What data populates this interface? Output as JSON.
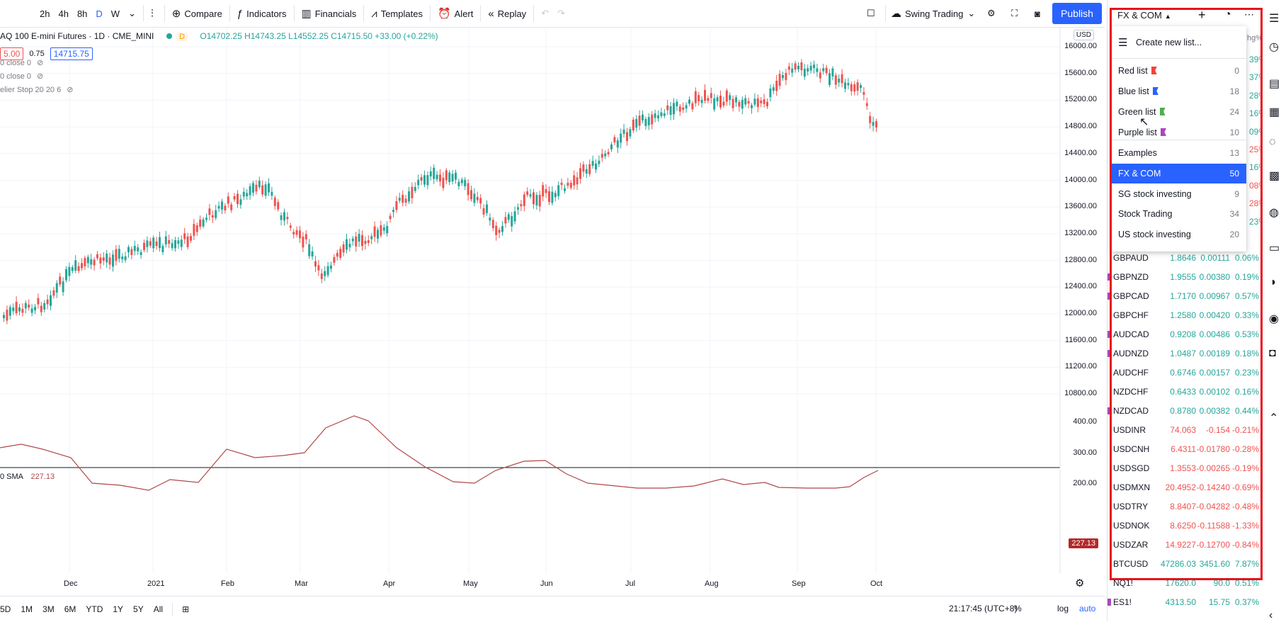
{
  "toolbar": {
    "intervals": [
      "2h",
      "4h",
      "8h",
      "D",
      "W"
    ],
    "active_interval": "D",
    "compare": "Compare",
    "indicators": "Indicators",
    "financials": "Financials",
    "templates": "Templates",
    "alert": "Alert",
    "replay": "Replay",
    "layout_name": "Swing Trading",
    "publish": "Publish"
  },
  "symbol": {
    "title": "AQ 100 E-mini Futures · 1D · CME_MINI",
    "badge": "D",
    "ohlc": "O14702.25 H14743.25 L14552.25 C14715.50 +33.00 (+0.22%)",
    "bid": "5.00",
    "spread": "0.75",
    "ask": "14715.75",
    "currency": "USD",
    "studies": [
      "0 close 0",
      "0 close 0",
      "elier Stop 20 20 6"
    ]
  },
  "sub_indicator": {
    "label": "0 SMA",
    "value": "227.13"
  },
  "price_scale": [
    "16000.00",
    "15600.00",
    "15200.00",
    "14800.00",
    "14400.00",
    "14000.00",
    "13600.00",
    "13200.00",
    "12800.00",
    "12400.00",
    "12000.00",
    "11600.00",
    "11200.00",
    "10800.00"
  ],
  "sub_scale": [
    "400.00",
    "300.00",
    "200.00"
  ],
  "sub_current": "227.13",
  "time_axis": [
    "Dec",
    "2021",
    "Feb",
    "Mar",
    "Apr",
    "May",
    "Jun",
    "Jul",
    "Aug",
    "Sep",
    "Oct"
  ],
  "bottom": {
    "ranges": [
      "5D",
      "1M",
      "3M",
      "6M",
      "YTD",
      "1Y",
      "5Y",
      "All"
    ],
    "time": "21:17:45 (UTC+8)",
    "pct": "%",
    "log": "log",
    "auto": "auto"
  },
  "watchlist": {
    "name": "FX & COM",
    "partial_header": "hg%",
    "partial_changes": [
      "39%",
      "37%",
      "28%",
      "16%",
      "09%",
      "25%",
      "16%",
      "08%",
      "28%",
      "23%"
    ],
    "rows": [
      {
        "sym": "GBPAUD",
        "last": "1.8646",
        "chg": "0.00111",
        "pct": "0.06%",
        "color": "#26a69a",
        "flag": ""
      },
      {
        "sym": "GBPNZD",
        "last": "1.9555",
        "chg": "0.00380",
        "pct": "0.19%",
        "color": "#26a69a",
        "flag": "#ab47bc"
      },
      {
        "sym": "GBPCAD",
        "last": "1.7170",
        "chg": "0.00967",
        "pct": "0.57%",
        "color": "#26a69a",
        "flag": "#ab47bc"
      },
      {
        "sym": "GBPCHF",
        "last": "1.2580",
        "chg": "0.00420",
        "pct": "0.33%",
        "color": "#26a69a",
        "flag": ""
      },
      {
        "sym": "AUDCAD",
        "last": "0.9208",
        "chg": "0.00486",
        "pct": "0.53%",
        "color": "#26a69a",
        "flag": "#ab47bc"
      },
      {
        "sym": "AUDNZD",
        "last": "1.0487",
        "chg": "0.00189",
        "pct": "0.18%",
        "color": "#26a69a",
        "flag": "#ab47bc"
      },
      {
        "sym": "AUDCHF",
        "last": "0.6746",
        "chg": "0.00157",
        "pct": "0.23%",
        "color": "#26a69a",
        "flag": ""
      },
      {
        "sym": "NZDCHF",
        "last": "0.6433",
        "chg": "0.00102",
        "pct": "0.16%",
        "color": "#26a69a",
        "flag": ""
      },
      {
        "sym": "NZDCAD",
        "last": "0.8780",
        "chg": "0.00382",
        "pct": "0.44%",
        "color": "#26a69a",
        "flag": "#ab47bc"
      },
      {
        "sym": "USDINR",
        "last": "74.063",
        "chg": "-0.154",
        "pct": "-0.21%",
        "color": "#ef5350",
        "flag": ""
      },
      {
        "sym": "USDCNH",
        "last": "6.4311",
        "chg": "-0.01780",
        "pct": "-0.28%",
        "color": "#ef5350",
        "flag": ""
      },
      {
        "sym": "USDSGD",
        "last": "1.3553",
        "chg": "-0.00265",
        "pct": "-0.19%",
        "color": "#ef5350",
        "flag": ""
      },
      {
        "sym": "USDMXN",
        "last": "20.4952",
        "chg": "-0.14240",
        "pct": "-0.69%",
        "color": "#ef5350",
        "flag": ""
      },
      {
        "sym": "USDTRY",
        "last": "8.8407",
        "chg": "-0.04282",
        "pct": "-0.48%",
        "color": "#ef5350",
        "flag": ""
      },
      {
        "sym": "USDNOK",
        "last": "8.6250",
        "chg": "-0.11588",
        "pct": "-1.33%",
        "color": "#ef5350",
        "flag": ""
      },
      {
        "sym": "USDZAR",
        "last": "14.9227",
        "chg": "-0.12700",
        "pct": "-0.84%",
        "color": "#ef5350",
        "flag": ""
      },
      {
        "sym": "BTCUSD",
        "last": "47286.03",
        "chg": "3451.60",
        "pct": "7.87%",
        "color": "#26a69a",
        "flag": ""
      },
      {
        "sym": "NQ1!",
        "last": "17620.0",
        "chg": "90.0",
        "pct": "0.51%",
        "color": "#26a69a",
        "flag": ""
      },
      {
        "sym": "ES1!",
        "last": "4313.50",
        "chg": "15.75",
        "pct": "0.37%",
        "color": "#26a69a",
        "flag": "#ab47bc"
      }
    ]
  },
  "dropdown": {
    "create": "Create new list...",
    "lists": [
      {
        "name": "Red list",
        "count": "0",
        "flag": "#f44336"
      },
      {
        "name": "Blue list",
        "count": "18",
        "flag": "#2962ff"
      },
      {
        "name": "Green list",
        "count": "24",
        "flag": "#4caf50"
      },
      {
        "name": "Purple list",
        "count": "10",
        "flag": "#ab47bc"
      }
    ],
    "other": [
      {
        "name": "Examples",
        "count": "13"
      },
      {
        "name": "FX & COM",
        "count": "50",
        "selected": true
      },
      {
        "name": "SG stock investing",
        "count": "9"
      },
      {
        "name": "Stock Trading",
        "count": "34"
      },
      {
        "name": "US stock investing",
        "count": "20"
      }
    ]
  },
  "colors": {
    "up": "#26a69a",
    "down": "#ef5350",
    "accent": "#2962ff",
    "highlight": "#e8101a",
    "sma": "#b04848"
  }
}
